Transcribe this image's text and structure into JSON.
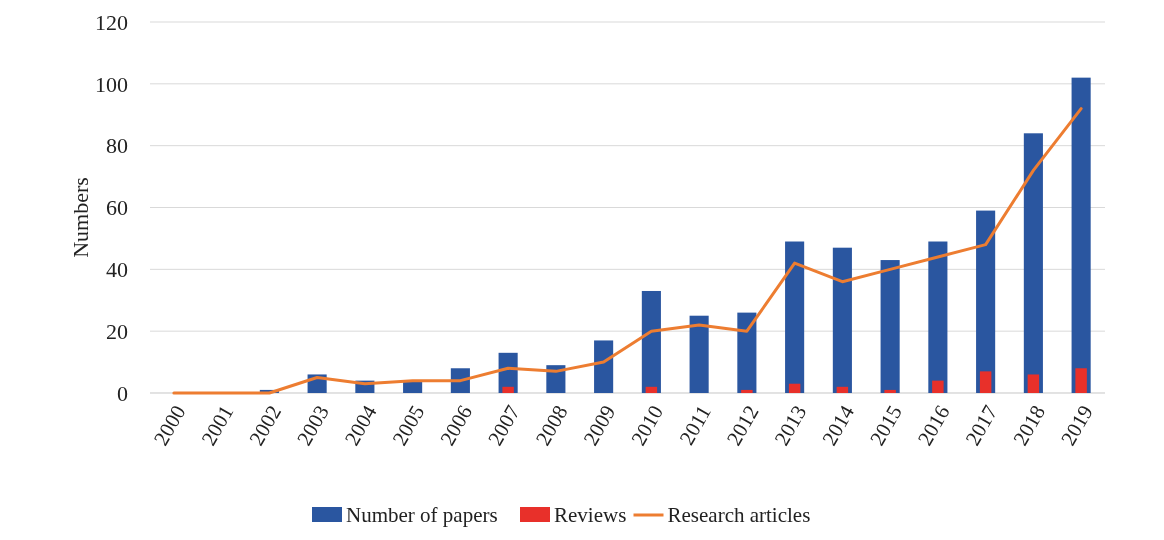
{
  "chart_data": {
    "type": "bar",
    "ylabel": "Numbers",
    "categories": [
      "2000",
      "2001",
      "2002",
      "2003",
      "2004",
      "2005",
      "2006",
      "2007",
      "2008",
      "2009",
      "2010",
      "2011",
      "2012",
      "2013",
      "2014",
      "2015",
      "2016",
      "2017",
      "2018",
      "2019"
    ],
    "series": [
      {
        "name": "Number of papers",
        "color": "#2a56a0",
        "values": [
          0,
          0,
          1,
          6,
          4,
          4,
          8,
          13,
          9,
          17,
          33,
          25,
          26,
          49,
          47,
          43,
          49,
          59,
          84,
          102
        ]
      },
      {
        "name": "Reviews",
        "color": "#e8302a",
        "values": [
          0,
          0,
          0,
          0,
          0,
          0,
          0,
          2,
          0,
          0,
          2,
          0,
          1,
          3,
          2,
          1,
          4,
          7,
          6,
          8
        ]
      },
      {
        "name": "Research articles",
        "type": "line",
        "color": "#ed7d31",
        "values": [
          0,
          0,
          0,
          5,
          3,
          4,
          4,
          8,
          7,
          10,
          20,
          22,
          20,
          42,
          36,
          40,
          44,
          48,
          72,
          92
        ]
      }
    ],
    "ylim": [
      0,
      120
    ],
    "yticks": [
      0,
      20,
      40,
      60,
      80,
      100,
      120
    ],
    "grid": "y",
    "legend": "bottom"
  }
}
